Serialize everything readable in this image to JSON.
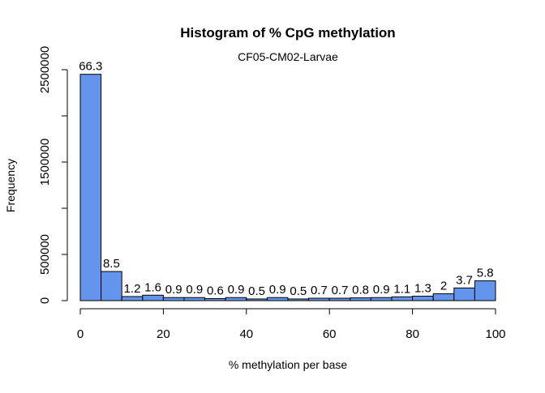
{
  "chart_data": {
    "type": "bar",
    "title": "Histogram of % CpG methylation",
    "subtitle": "CF05-CM02-Larvae",
    "xlabel": "% methylation per base",
    "ylabel": "Frequency",
    "xlim": [
      0,
      100
    ],
    "ylim": [
      0,
      2500000
    ],
    "xticks": [
      0,
      20,
      40,
      60,
      80,
      100
    ],
    "xtick_labels": [
      "0",
      "20",
      "40",
      "60",
      "80",
      "100"
    ],
    "yticks": [
      0,
      500000,
      1000000,
      1500000,
      2000000,
      2500000
    ],
    "ytick_labels": [
      "0",
      "500000",
      "",
      "1500000",
      "",
      "2500000"
    ],
    "bar_color": "#6495ed",
    "bar_edge_color": "#000000",
    "grid": false,
    "bins": [
      {
        "start": 0,
        "end": 5,
        "value": 2450000,
        "label": "66.3"
      },
      {
        "start": 5,
        "end": 10,
        "value": 315000,
        "label": "8.5"
      },
      {
        "start": 10,
        "end": 15,
        "value": 44000,
        "label": "1.2"
      },
      {
        "start": 15,
        "end": 20,
        "value": 59000,
        "label": "1.6"
      },
      {
        "start": 20,
        "end": 25,
        "value": 33000,
        "label": "0.9"
      },
      {
        "start": 25,
        "end": 30,
        "value": 33000,
        "label": "0.9"
      },
      {
        "start": 30,
        "end": 35,
        "value": 22000,
        "label": "0.6"
      },
      {
        "start": 35,
        "end": 40,
        "value": 33000,
        "label": "0.9"
      },
      {
        "start": 40,
        "end": 45,
        "value": 18000,
        "label": "0.5"
      },
      {
        "start": 45,
        "end": 50,
        "value": 33000,
        "label": "0.9"
      },
      {
        "start": 50,
        "end": 55,
        "value": 18000,
        "label": "0.5"
      },
      {
        "start": 55,
        "end": 60,
        "value": 26000,
        "label": "0.7"
      },
      {
        "start": 60,
        "end": 65,
        "value": 26000,
        "label": "0.7"
      },
      {
        "start": 65,
        "end": 70,
        "value": 30000,
        "label": "0.8"
      },
      {
        "start": 70,
        "end": 75,
        "value": 33000,
        "label": "0.9"
      },
      {
        "start": 75,
        "end": 80,
        "value": 41000,
        "label": "1.1"
      },
      {
        "start": 80,
        "end": 85,
        "value": 48000,
        "label": "1.3"
      },
      {
        "start": 85,
        "end": 90,
        "value": 74000,
        "label": "2"
      },
      {
        "start": 90,
        "end": 95,
        "value": 137000,
        "label": "3.7"
      },
      {
        "start": 95,
        "end": 100,
        "value": 214000,
        "label": "5.8"
      }
    ]
  }
}
